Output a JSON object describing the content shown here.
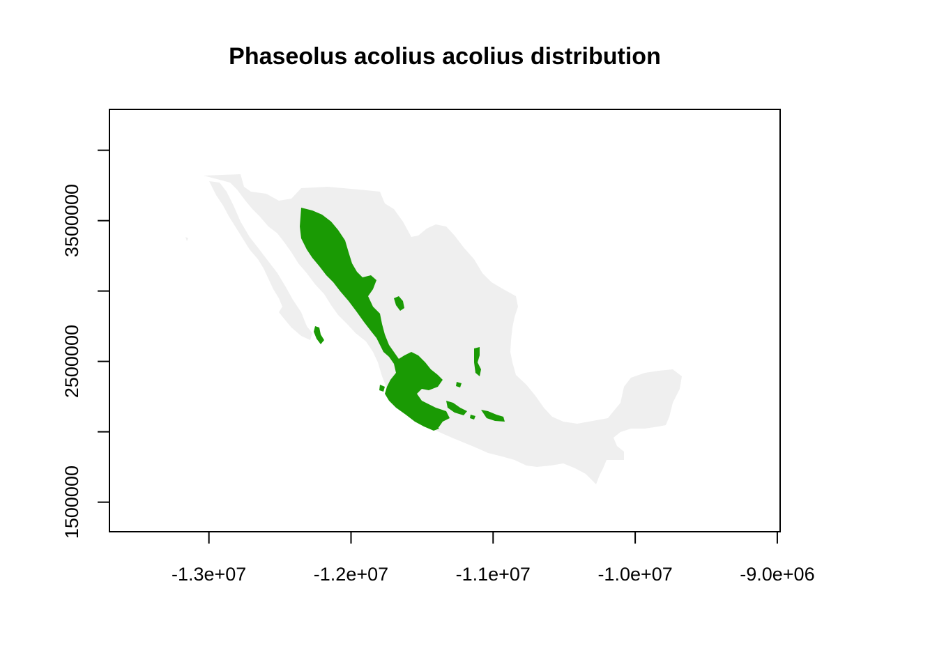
{
  "title": "Phaseolus acolius acolius distribution",
  "x_axis": {
    "ticks": [
      -13000000,
      -12000000,
      -11000000,
      -10000000,
      -9000000
    ],
    "tick_labels": [
      "-1.3e+07",
      "-1.2e+07",
      "-1.1e+07",
      "-1.0e+07",
      "-9.0e+06"
    ],
    "range": [
      -13700000,
      -8980000
    ]
  },
  "y_axis": {
    "ticks": [
      1500000,
      2000000,
      2500000,
      3000000,
      3500000,
      4000000
    ],
    "tick_labels": [
      "1500000",
      "",
      "2500000",
      "",
      "3500000",
      ""
    ],
    "range": [
      1290000,
      4290000
    ]
  },
  "colors": {
    "background_region": "#efefef",
    "distribution": "#1a9a04",
    "axis": "#000000"
  },
  "layers": [
    "mexico-landmass",
    "species-distribution"
  ]
}
